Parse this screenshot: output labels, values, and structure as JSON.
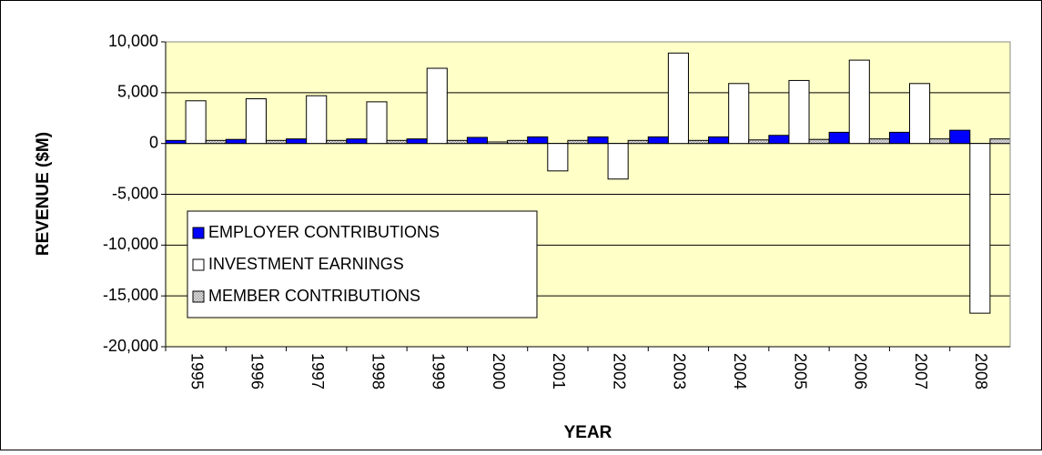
{
  "chart_data": {
    "type": "bar",
    "x_label": "YEAR",
    "y_label": "REVENUE ($M)",
    "categories": [
      "1995",
      "1996",
      "1997",
      "1998",
      "1999",
      "2000",
      "2001",
      "2002",
      "2003",
      "2004",
      "2005",
      "2006",
      "2007",
      "2008"
    ],
    "series": [
      {
        "name": "EMPLOYER CONTRIBUTIONS",
        "color": "#0000ff",
        "values": [
          300,
          400,
          450,
          450,
          450,
          600,
          650,
          650,
          650,
          650,
          800,
          1100,
          1100,
          1300
        ]
      },
      {
        "name": "INVESTMENT EARNINGS",
        "color": "#ffffff",
        "values": [
          4200,
          4400,
          4700,
          4100,
          7400,
          150,
          -2700,
          -3500,
          8900,
          5900,
          6200,
          8200,
          5900,
          -16700
        ]
      },
      {
        "name": "MEMBER CONTRIBUTIONS",
        "color": "#a0a0a0",
        "values": [
          300,
          300,
          300,
          300,
          300,
          300,
          300,
          300,
          300,
          350,
          400,
          450,
          450,
          450
        ]
      }
    ],
    "ylim": [
      -20000,
      10000
    ],
    "yticks": [
      {
        "value": -20000,
        "label": "-20,000"
      },
      {
        "value": -15000,
        "label": "-15,000"
      },
      {
        "value": -10000,
        "label": "-10,000"
      },
      {
        "value": -5000,
        "label": "-5,000"
      },
      0,
      {
        "value": 5000,
        "label": "5,000"
      },
      {
        "value": 10000,
        "label": "10,000"
      }
    ],
    "grid": true,
    "plot_background": "#ffffc8"
  }
}
